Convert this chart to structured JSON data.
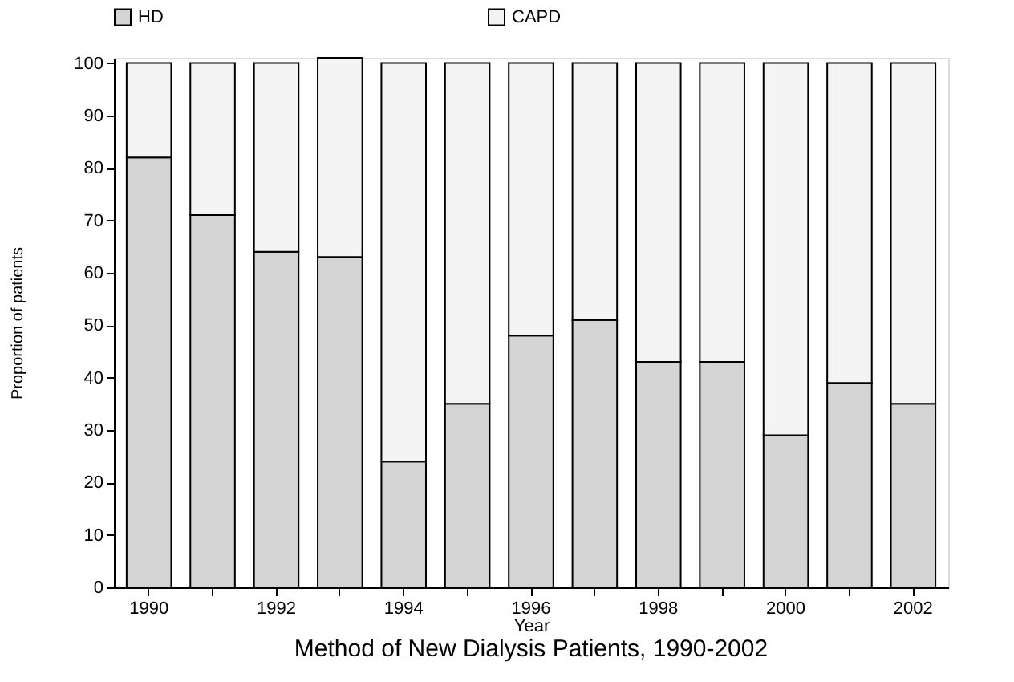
{
  "chart_data": {
    "type": "bar",
    "stacked": true,
    "title": "Method of New Dialysis Patients, 1990-2002",
    "xlabel": "Year",
    "ylabel": "Proportion of patients",
    "categories": [
      "1990",
      null,
      "1992",
      null,
      "1994",
      null,
      "1996",
      null,
      "1998",
      null,
      "2000",
      null,
      "2002"
    ],
    "series": [
      {
        "name": "HD",
        "color": "#d4d4d4",
        "values": [
          82,
          71,
          64,
          63,
          24,
          35,
          48,
          51,
          43,
          43,
          29,
          39,
          35
        ]
      },
      {
        "name": "CAPD",
        "color": "#f4f4f4",
        "values": [
          18,
          29,
          36,
          38,
          76,
          65,
          52,
          49,
          57,
          57,
          71,
          61,
          65
        ]
      }
    ],
    "ylim": [
      0,
      101
    ],
    "yticks": [
      0,
      10,
      20,
      30,
      40,
      50,
      60,
      70,
      80,
      90,
      100
    ],
    "grid": false,
    "legend": "top"
  }
}
